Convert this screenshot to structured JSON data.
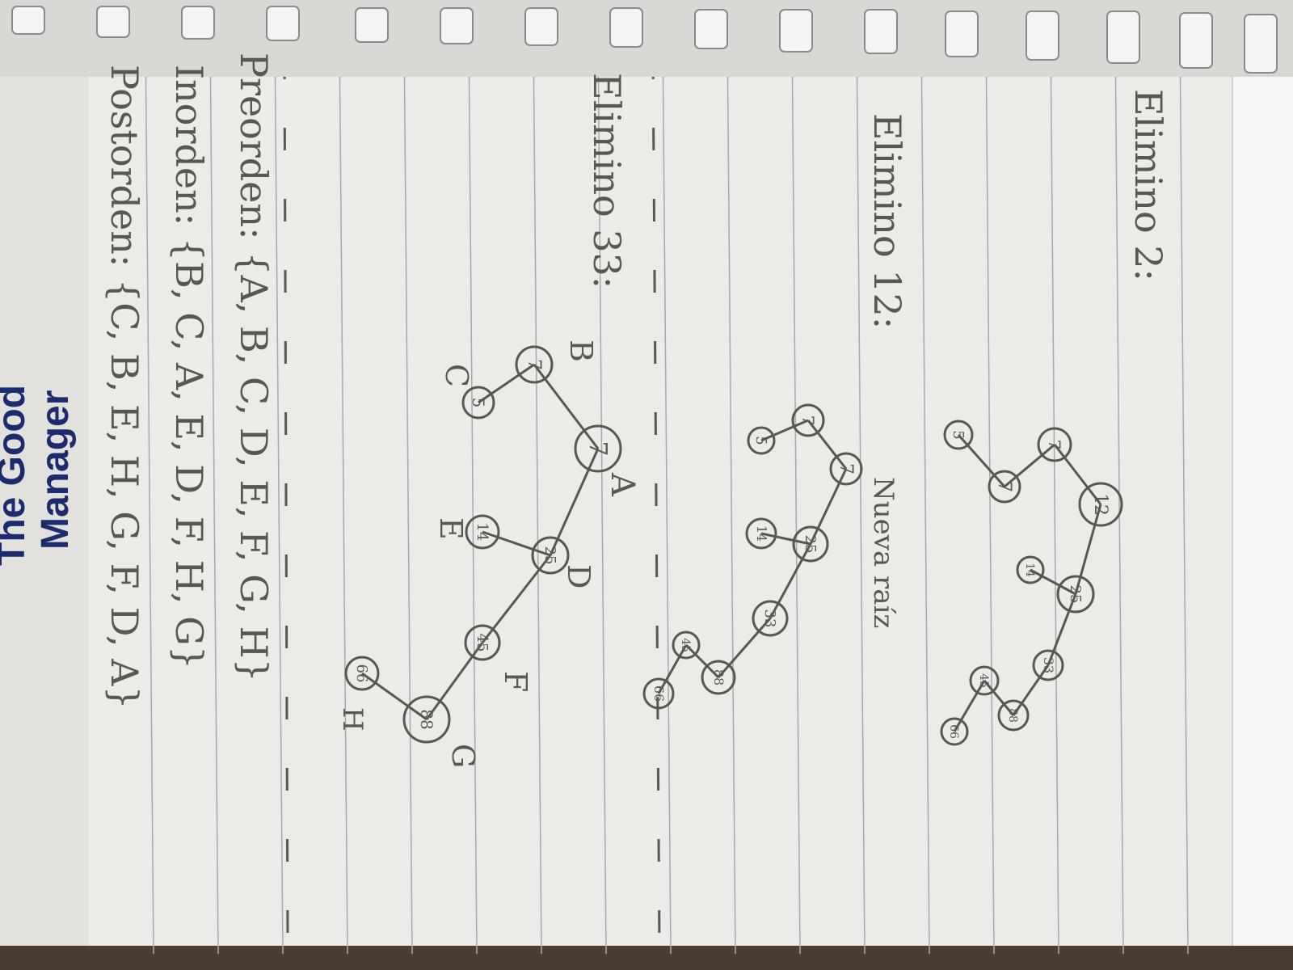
{
  "photo": {
    "colors": {
      "paper": "#ecebe8",
      "rule": "#a7a7ad",
      "ink": "#5a5652",
      "brand": "#1c2a6e",
      "table": "#3a2f26"
    },
    "section1": {
      "heading": "Elimino 2:",
      "nodes": [
        "12",
        "7",
        "7",
        "5",
        "25",
        "14",
        "33",
        "88",
        "45",
        "66"
      ]
    },
    "section2": {
      "heading": "Elimino 12:",
      "note": "Nueva raíz",
      "nodes": [
        "7",
        "7",
        "5",
        "25",
        "14",
        "33",
        "88",
        "45",
        "66"
      ]
    },
    "section3": {
      "heading": "Elimino 33:",
      "nodes": [
        "7",
        "7",
        "5",
        "25",
        "14",
        "45",
        "88",
        "66"
      ],
      "letters": [
        "A",
        "B",
        "C",
        "D",
        "E",
        "F",
        "G",
        "H"
      ]
    },
    "traversals": {
      "preorder": "Preorden: {A, B, C, D, E, F, G, H}",
      "inorder": "Inorden: {B, C, A, E, D, F, H, G}",
      "postorder": "Postorden: {C, B, E, H, G, F, D, A}"
    },
    "brand": {
      "line1": "The Good",
      "line2": "Manager"
    }
  }
}
